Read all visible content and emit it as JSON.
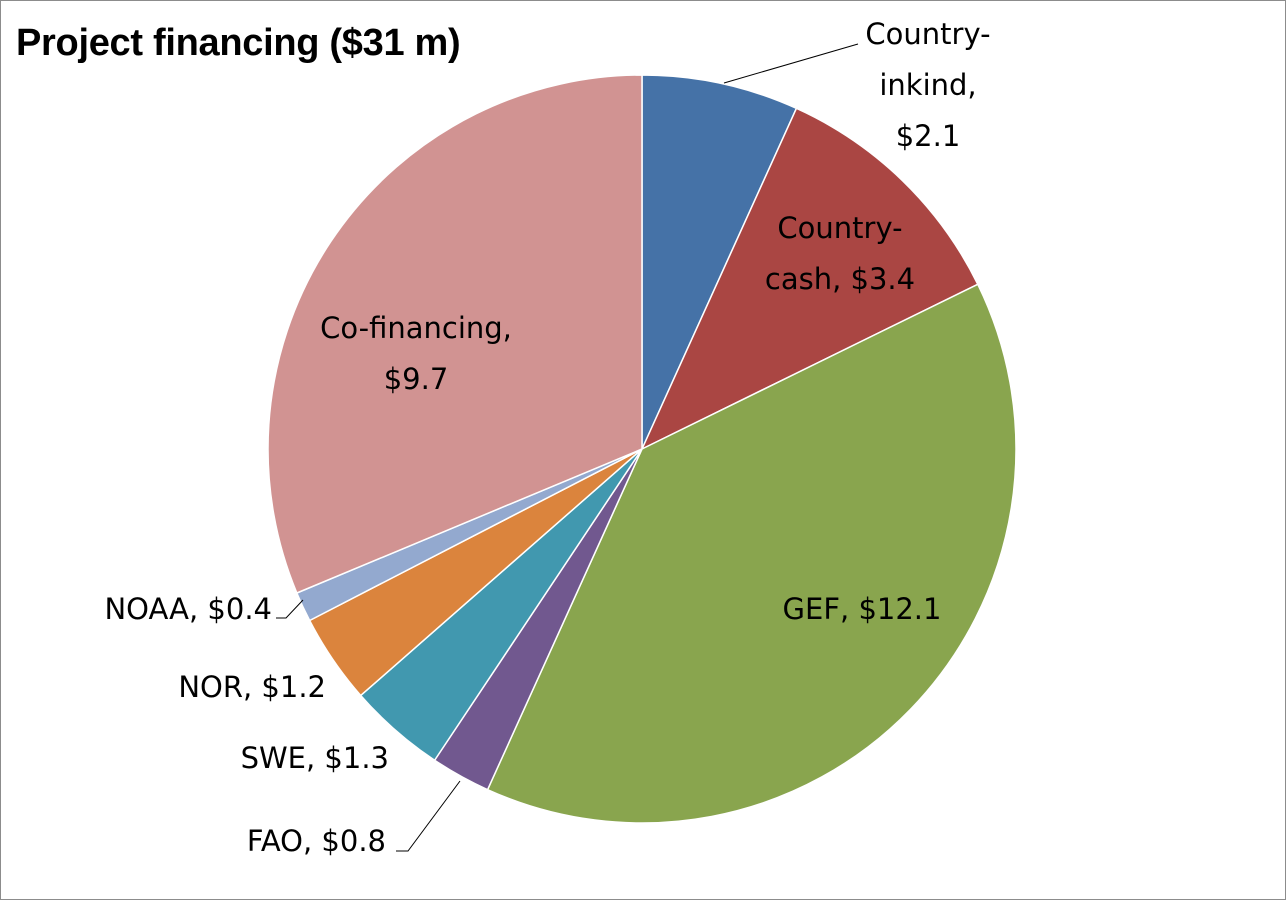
{
  "chart_data": {
    "type": "pie",
    "title": "Project financing ($31 m)",
    "start_angle_deg": 90,
    "direction": "clockwise",
    "slices": [
      {
        "name": "Country-inkind",
        "value": 2.1,
        "color": "#4572A7",
        "label_lines": [
          "Country-",
          "inkind,",
          "$2.1"
        ]
      },
      {
        "name": "Country-cash",
        "value": 3.4,
        "color": "#AA4643",
        "label_lines": [
          "Country-",
          "cash, $3.4"
        ]
      },
      {
        "name": "GEF",
        "value": 12.1,
        "color": "#89A54E",
        "label_lines": [
          "GEF, $12.1"
        ]
      },
      {
        "name": "FAO",
        "value": 0.8,
        "color": "#71588F",
        "label_lines": [
          "FAO, $0.8"
        ]
      },
      {
        "name": "SWE",
        "value": 1.3,
        "color": "#4198AF",
        "label_lines": [
          "SWE, $1.3"
        ]
      },
      {
        "name": "NOR",
        "value": 1.2,
        "color": "#DB843D",
        "label_lines": [
          "NOR, $1.2"
        ]
      },
      {
        "name": "NOAA",
        "value": 0.4,
        "color": "#93A9CF",
        "label_lines": [
          "NOAA, $0.4"
        ]
      },
      {
        "name": "Co-financing",
        "value": 9.7,
        "color": "#D19392",
        "label_lines": [
          "Co-financing,",
          "$9.7"
        ]
      }
    ]
  }
}
